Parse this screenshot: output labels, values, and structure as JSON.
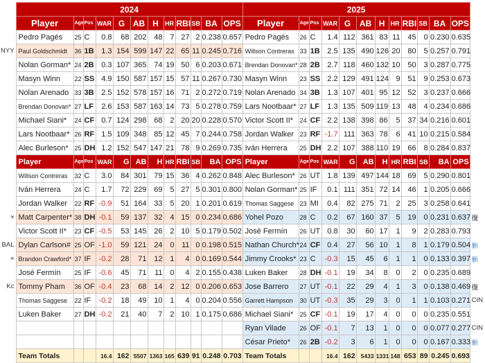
{
  "years": [
    "2024",
    "2025"
  ],
  "columns": [
    "Player",
    "Age",
    "Pos",
    "WAR",
    "G",
    "AB",
    "H",
    "HR",
    "RBI",
    "SB",
    "BA",
    "OPS"
  ],
  "starters": {
    "left": [
      [
        "Pedro Pagés",
        "25",
        "C",
        "0.8",
        "68",
        "202",
        "48",
        "7",
        "27",
        "2",
        "0.238",
        "0.657"
      ],
      [
        "Paul Goldschmidt",
        "36",
        "1B",
        "1.3",
        "154",
        "599",
        "147",
        "22",
        "65",
        "11",
        "0.245",
        "0.716"
      ],
      [
        "Nolan Gorman*",
        "24",
        "2B",
        "0.3",
        "107",
        "365",
        "74",
        "19",
        "50",
        "6",
        "0.203",
        "0.671"
      ],
      [
        "Masyn Winn",
        "22",
        "SS",
        "4.9",
        "150",
        "587",
        "157",
        "15",
        "57",
        "11",
        "0.267",
        "0.730"
      ],
      [
        "Nolan Arenado",
        "33",
        "3B",
        "2.5",
        "152",
        "578",
        "157",
        "16",
        "71",
        "2",
        "0.272",
        "0.719"
      ],
      [
        "Brendan Donovan*",
        "27",
        "LF",
        "2.6",
        "153",
        "587",
        "163",
        "14",
        "73",
        "5",
        "0.278",
        "0.759"
      ],
      [
        "Michael Siani*",
        "24",
        "CF",
        "0.7",
        "124",
        "298",
        "68",
        "2",
        "20",
        "20",
        "0.228",
        "0.570"
      ],
      [
        "Lars Nootbaar*",
        "26",
        "RF",
        "1.5",
        "109",
        "348",
        "85",
        "12",
        "45",
        "7",
        "0.244",
        "0.758"
      ],
      [
        "Alec Burleson*",
        "25",
        "DH",
        "1.2",
        "152",
        "547",
        "147",
        "21",
        "78",
        "9",
        "0.269",
        "0.735"
      ]
    ],
    "right": [
      [
        "Pedro Pagés",
        "26",
        "C",
        "1.4",
        "112",
        "361",
        "83",
        "11",
        "45",
        "0",
        "0.230",
        "0.635"
      ],
      [
        "Willson Contreras",
        "33",
        "1B",
        "2.5",
        "135",
        "490",
        "126",
        "20",
        "80",
        "5",
        "0.257",
        "0.791"
      ],
      [
        "Brendan Donovan*",
        "28",
        "2B",
        "2.7",
        "118",
        "460",
        "132",
        "10",
        "50",
        "3",
        "0.287",
        "0.775"
      ],
      [
        "Masyn Winn",
        "23",
        "SS",
        "2.2",
        "129",
        "491",
        "124",
        "9",
        "51",
        "9",
        "0.253",
        "0.673"
      ],
      [
        "Nolan Arenado",
        "34",
        "3B",
        "1.3",
        "107",
        "401",
        "95",
        "12",
        "52",
        "3",
        "0.237",
        "0.666"
      ],
      [
        "Lars Nootbaar*",
        "27",
        "LF",
        "1.3",
        "135",
        "509",
        "119",
        "13",
        "48",
        "4",
        "0.234",
        "0.686"
      ],
      [
        "Victor Scott II*",
        "24",
        "CF",
        "2.2",
        "138",
        "398",
        "86",
        "5",
        "37",
        "34",
        "0.216",
        "0.601"
      ],
      [
        "Jordan Walker",
        "23",
        "RF",
        "-1.7",
        "111",
        "363",
        "78",
        "6",
        "41",
        "10",
        "0.215",
        "0.584"
      ],
      [
        "Iván Herrera",
        "25",
        "DH",
        "2.2",
        "107",
        "388",
        "110",
        "19",
        "66",
        "8",
        "0.284",
        "0.837"
      ]
    ]
  },
  "bench": {
    "left": [
      [
        "Willson Contreras",
        "32",
        "C",
        "3.0",
        "84",
        "301",
        "79",
        "15",
        "36",
        "4",
        "0.262",
        "0.848"
      ],
      [
        "Iván Herrera",
        "24",
        "C",
        "1.7",
        "72",
        "229",
        "69",
        "5",
        "27",
        "5",
        "0.301",
        "0.800"
      ],
      [
        "Jordan Walker",
        "22",
        "RF",
        "-0.9",
        "51",
        "164",
        "33",
        "5",
        "20",
        "1",
        "0.201",
        "0.619"
      ],
      [
        "Matt Carpenter*",
        "38",
        "DH",
        "-0.1",
        "59",
        "137",
        "32",
        "4",
        "15",
        "0",
        "0.234",
        "0.686"
      ],
      [
        "Victor Scott II*",
        "23",
        "CF",
        "-0.5",
        "53",
        "145",
        "26",
        "2",
        "10",
        "5",
        "0.179",
        "0.502"
      ],
      [
        "Dylan Carlson#",
        "25",
        "OF",
        "-1.0",
        "59",
        "121",
        "24",
        "0",
        "11",
        "0",
        "0.198",
        "0.515"
      ],
      [
        "Brandon Crawford*",
        "37",
        "IF",
        "-0.2",
        "28",
        "71",
        "12",
        "1",
        "4",
        "0",
        "0.169",
        "0.544"
      ],
      [
        "José Fermín",
        "25",
        "IF",
        "-0.6",
        "45",
        "71",
        "11",
        "0",
        "4",
        "2",
        "0.155",
        "0.438"
      ],
      [
        "Tommy Pham",
        "36",
        "OF",
        "-0.4",
        "23",
        "68",
        "14",
        "2",
        "12",
        "0",
        "0.206",
        "0.653"
      ],
      [
        "Thomas Saggese",
        "22",
        "IF",
        "-0.2",
        "18",
        "49",
        "10",
        "1",
        "4",
        "0",
        "0.204",
        "0.556"
      ],
      [
        "Luken Baker",
        "27",
        "DH",
        "-0.2",
        "21",
        "40",
        "7",
        "2",
        "10",
        "1",
        "0.175",
        "0.686"
      ]
    ],
    "right": [
      [
        "Alec Burleson*",
        "26",
        "UT",
        "1.8",
        "139",
        "497",
        "144",
        "18",
        "69",
        "5",
        "0.290",
        "0.801"
      ],
      [
        "Nolan Gorman*",
        "25",
        "IF",
        "0.1",
        "111",
        "351",
        "72",
        "14",
        "46",
        "1",
        "0.205",
        "0.666"
      ],
      [
        "Thomas Saggese",
        "23",
        "MI",
        "0.4",
        "82",
        "275",
        "71",
        "2",
        "25",
        "3",
        "0.258",
        "0.641"
      ],
      [
        "Yohel Pozo",
        "28",
        "C",
        "0.2",
        "67",
        "160",
        "37",
        "5",
        "19",
        "0",
        "0.231",
        "0.637"
      ],
      [
        "José Fermín",
        "26",
        "UT",
        "0.8",
        "30",
        "60",
        "17",
        "1",
        "9",
        "2",
        "0.283",
        "0.793"
      ],
      [
        "Nathan Church*",
        "24",
        "CF",
        "0.4",
        "27",
        "56",
        "10",
        "1",
        "8",
        "1",
        "0.179",
        "0.504"
      ],
      [
        "Jimmy Crooks*",
        "23",
        "C",
        "-0.3",
        "15",
        "45",
        "6",
        "1",
        "1",
        "0",
        "0.133",
        "0.397"
      ],
      [
        "Luken Baker",
        "28",
        "DH",
        "-0.1",
        "19",
        "34",
        "8",
        "0",
        "2",
        "0",
        "0.235",
        "0.689"
      ],
      [
        "Jose Barrero",
        "27",
        "UT",
        "-0.1",
        "22",
        "29",
        "4",
        "1",
        "3",
        "0",
        "0.138",
        "0.469"
      ],
      [
        "Garrett Hampson",
        "30",
        "UT",
        "-0.3",
        "35",
        "29",
        "3",
        "0",
        "1",
        "1",
        "0.103",
        "0.271"
      ],
      [
        "Michael Siani*",
        "25",
        "CF",
        "-0.1",
        "19",
        "17",
        "4",
        "0",
        "0",
        "0",
        "0.235",
        "0.551"
      ],
      [
        "Ryan Vilade",
        "26",
        "OF",
        "-0.1",
        "7",
        "13",
        "1",
        "0",
        "0",
        "0",
        "0.077",
        "0.277"
      ],
      [
        "César Prieto*",
        "26",
        "2B",
        "-0.2",
        "3",
        "6",
        "1",
        "0",
        "0",
        "0",
        "0.167",
        "0.333"
      ]
    ]
  },
  "left_notes": {
    "s1": "NYY",
    "b3": "×",
    "b5": "BAL",
    "b6": "×",
    "b8": "Kc"
  },
  "right_notes": {
    "b3": "復",
    "b5": "新",
    "b6": "新",
    "b8": "復",
    "b9": "CIN",
    "b11": "CIN",
    "b12": "新"
  },
  "left_highlight": [
    "s1",
    "b3",
    "b5",
    "b6",
    "b8"
  ],
  "right_highlight": [
    "b3",
    "b5",
    "b6",
    "b8",
    "b9",
    "b11",
    "b12"
  ],
  "totals": {
    "label": "Team Totals",
    "left": [
      "",
      "",
      "16.4",
      "162",
      "5507",
      "1363",
      "165",
      "639",
      "91",
      "0.248",
      "0.703"
    ],
    "right": [
      "",
      "",
      "16.4",
      "162",
      "5433",
      "1331",
      "148",
      "653",
      "89",
      "0.245",
      "0.693"
    ]
  },
  "colors": {
    "header": "#c00000",
    "peach": "#fce4d6",
    "blue": "#ddebf7",
    "totals": "#fff2cc",
    "negative": "#c0392b"
  }
}
